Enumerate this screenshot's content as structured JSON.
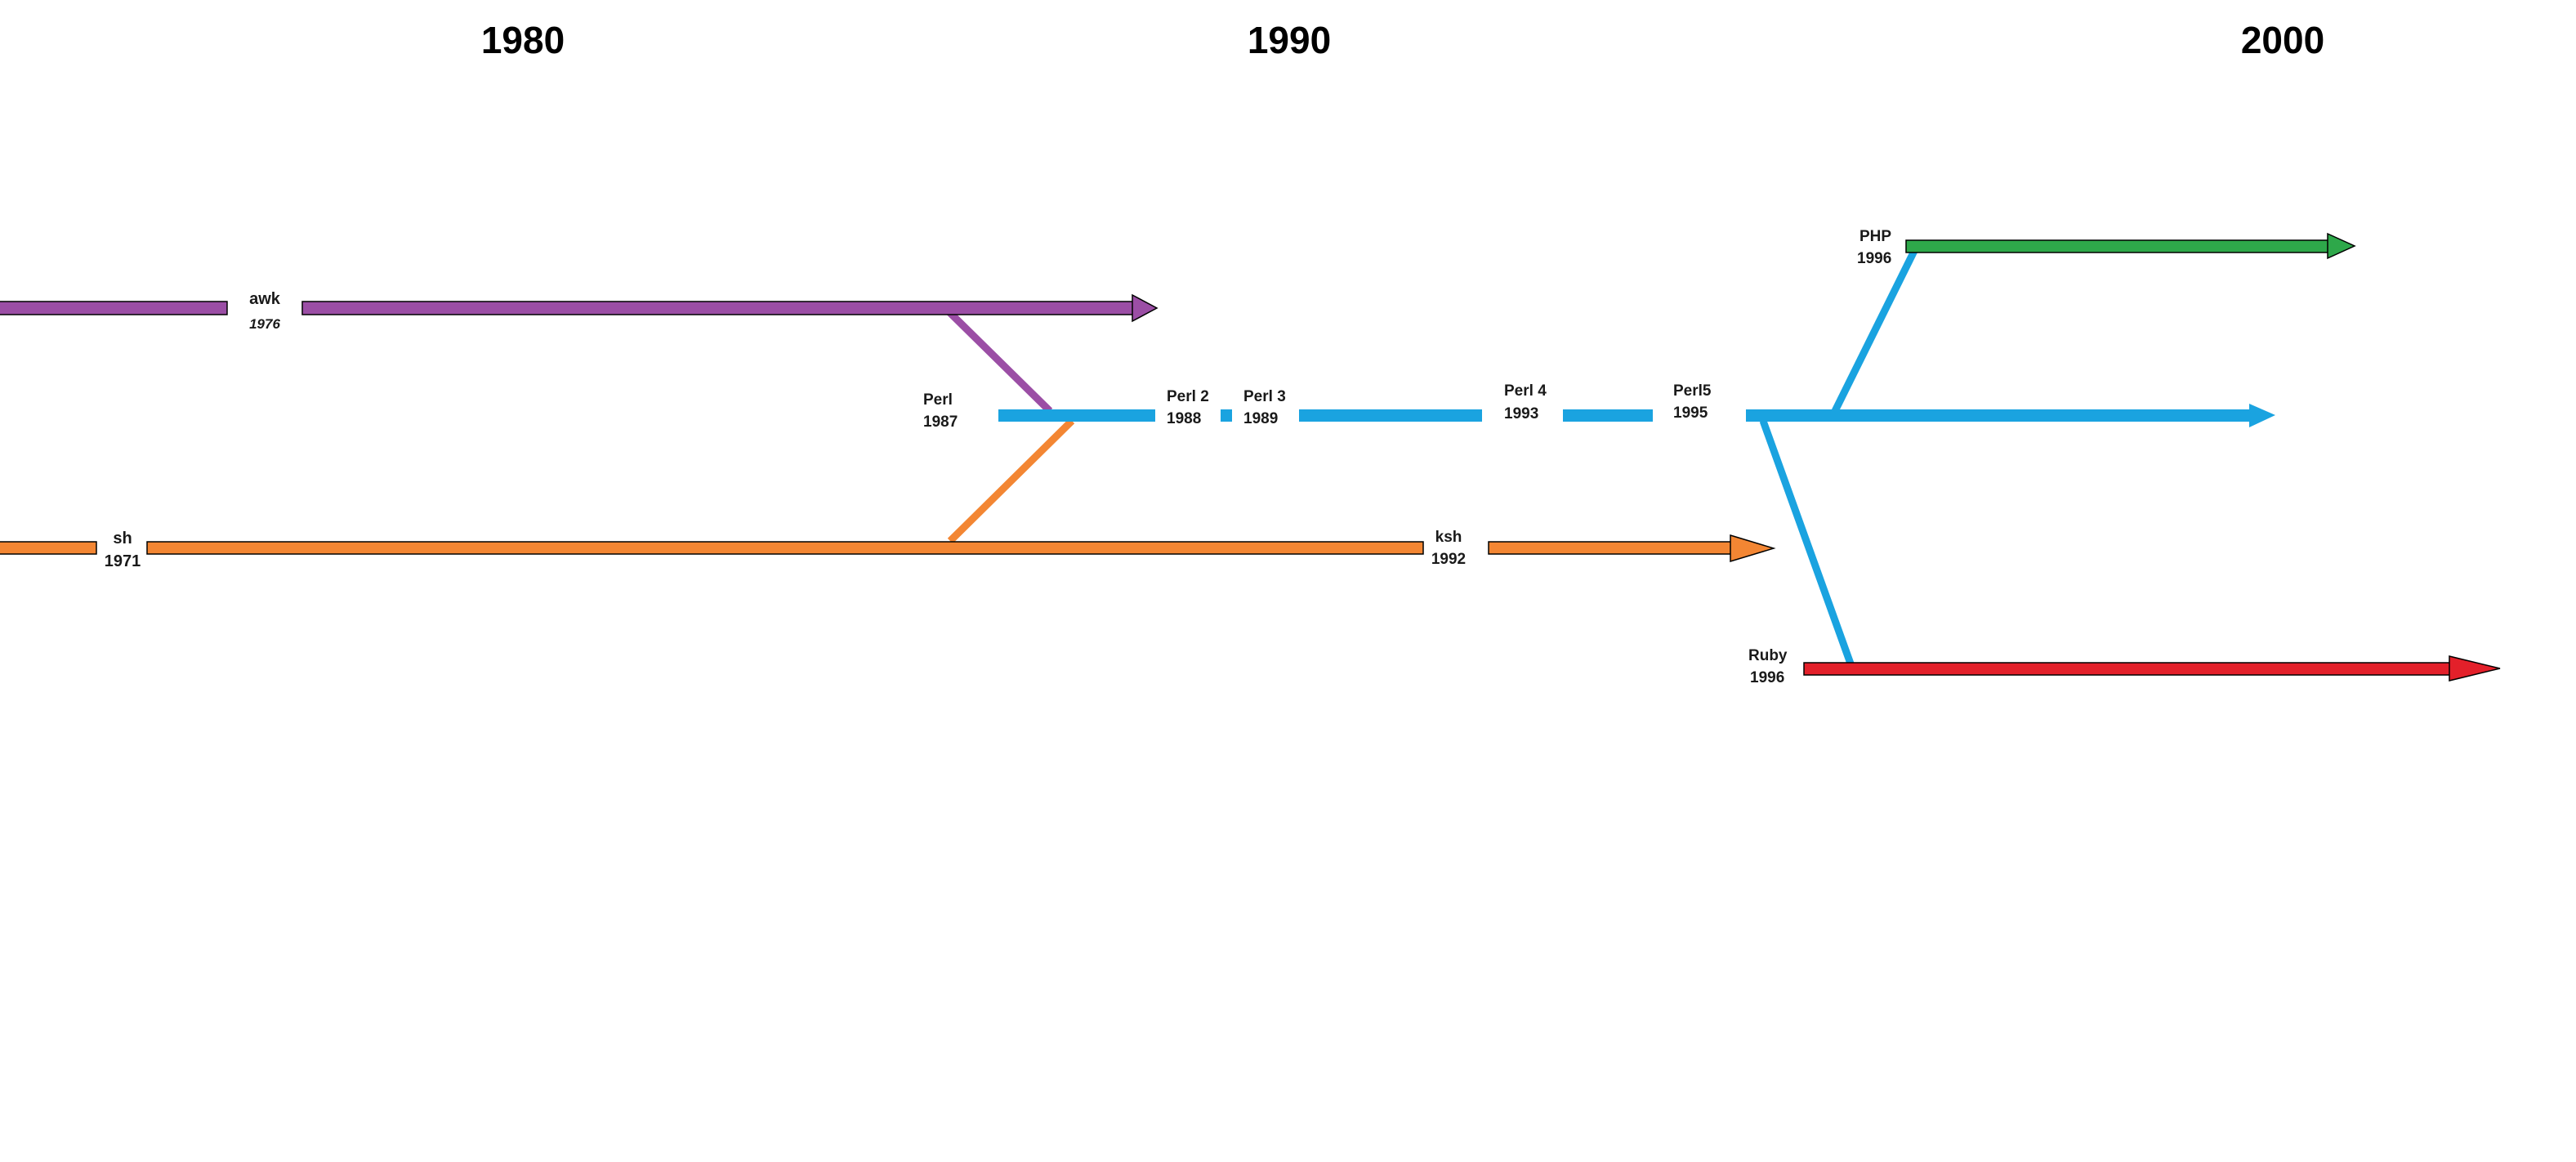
{
  "decades": [
    "1980",
    "1990",
    "2000"
  ],
  "colors": {
    "awk": "#9b4ea5",
    "perl": "#1aa3e0",
    "sh": "#f38633",
    "php": "#2ea84a",
    "ruby": "#e3202a",
    "outline": "#000000"
  },
  "languages": {
    "awk": {
      "name": "awk",
      "year": "1976"
    },
    "perl": {
      "name": "Perl",
      "year": "1987"
    },
    "perl2": {
      "name": "Perl 2",
      "year": "1988"
    },
    "perl3": {
      "name": "Perl 3",
      "year": "1989"
    },
    "perl4": {
      "name": "Perl 4",
      "year": "1993"
    },
    "perl5": {
      "name": "Perl5",
      "year": "1995"
    },
    "sh": {
      "name": "sh",
      "year": "1971"
    },
    "ksh": {
      "name": "ksh",
      "year": "1992"
    },
    "php": {
      "name": "PHP",
      "year": "1996"
    },
    "ruby": {
      "name": "Ruby",
      "year": "1996"
    }
  }
}
